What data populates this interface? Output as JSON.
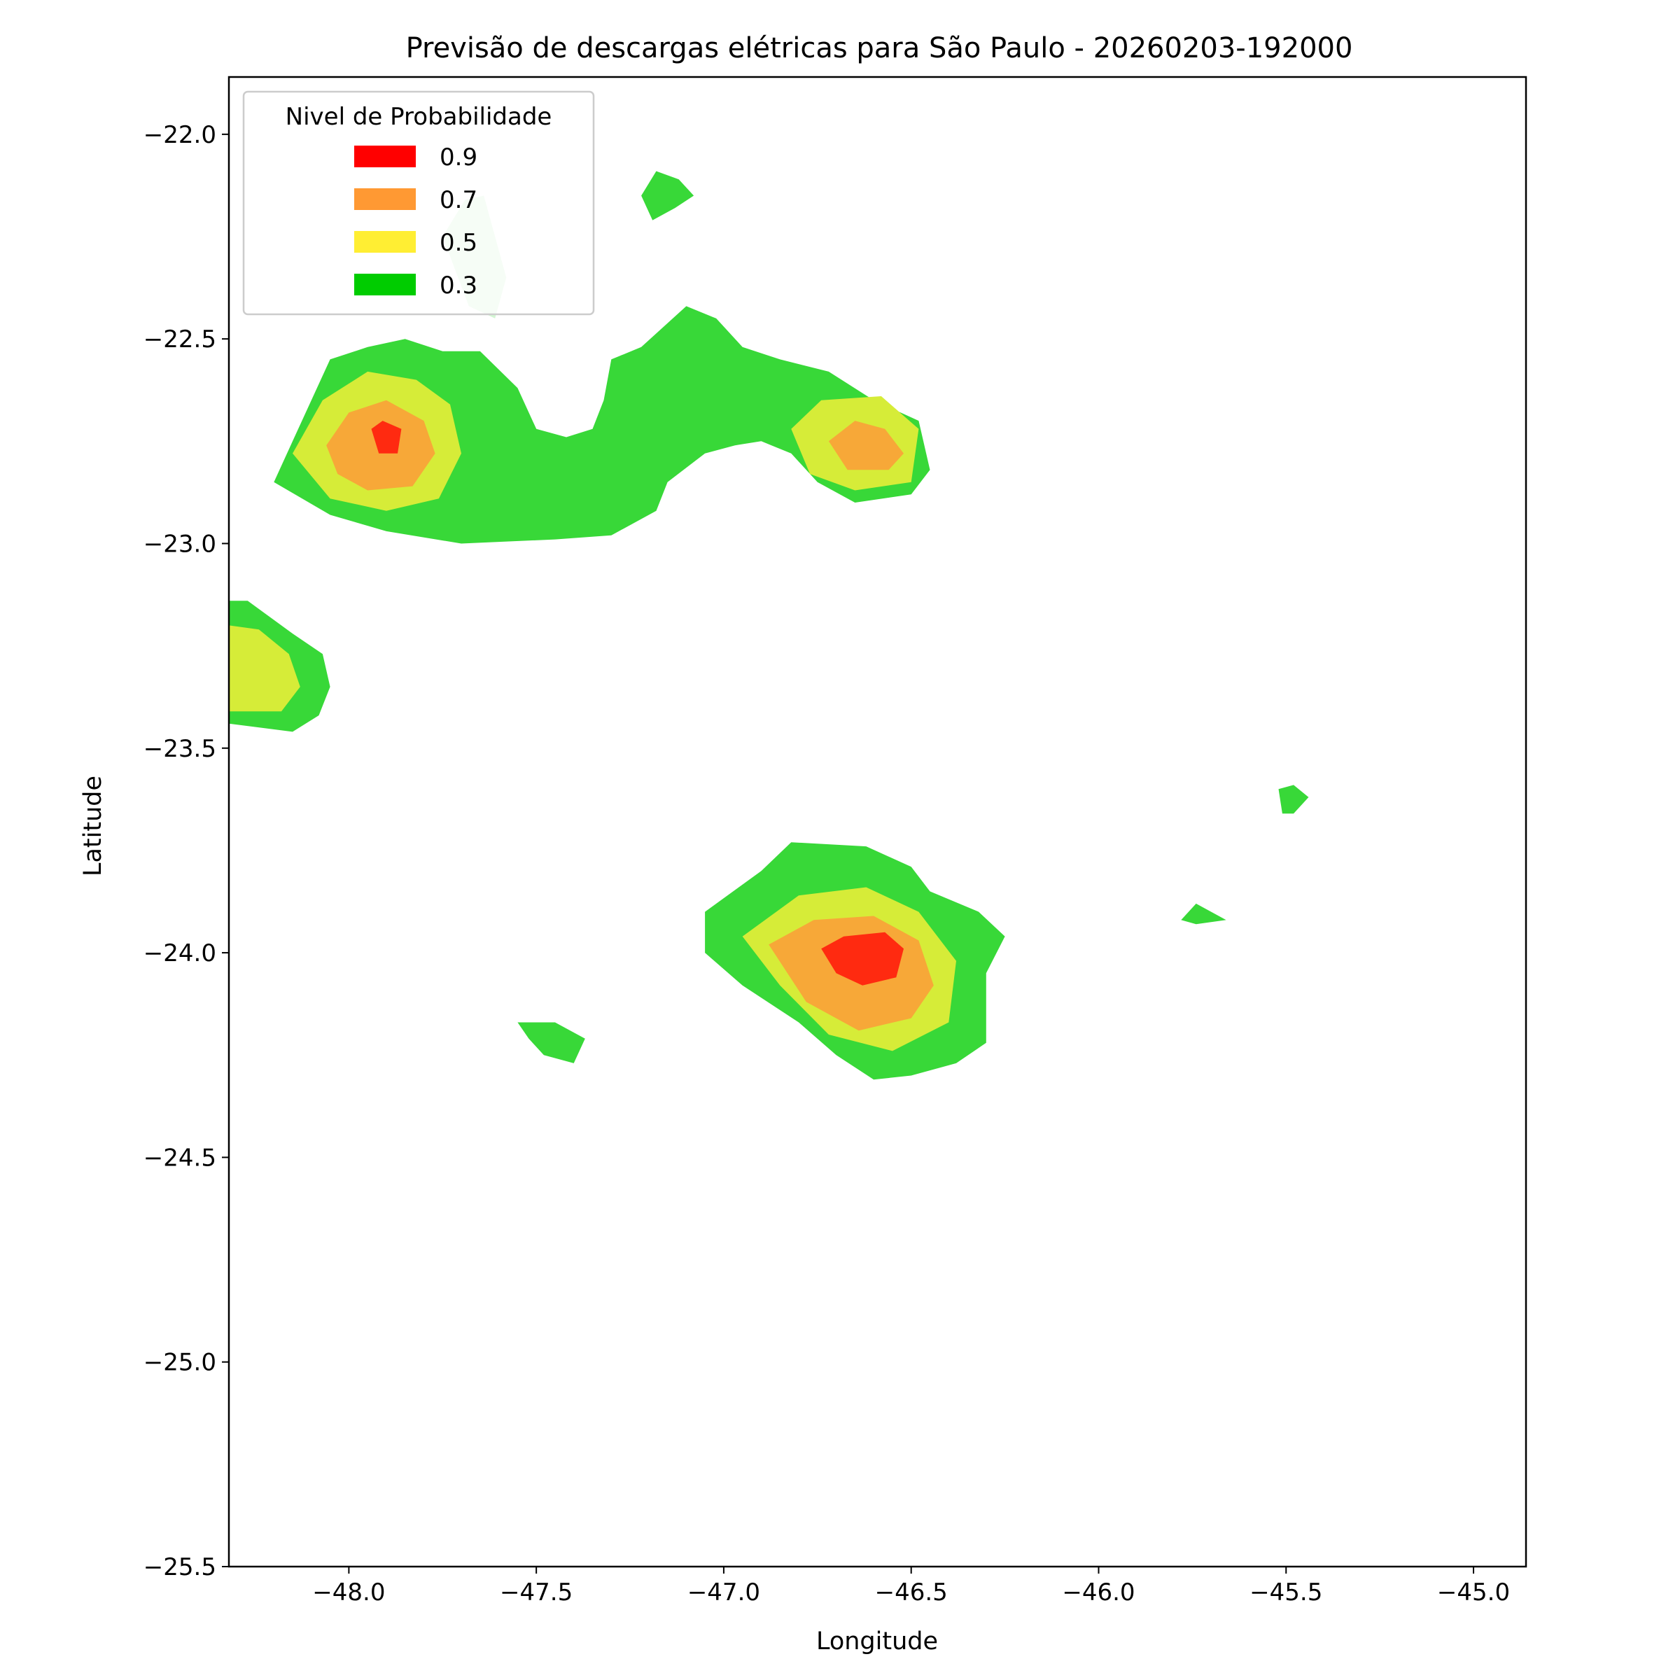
{
  "chart_data": {
    "type": "contourf",
    "title": "Previsão de descargas elétricas para São Paulo - 20260203-192000",
    "xlabel": "Longitude",
    "ylabel": "Latitude",
    "xlim": [
      -48.32,
      -44.86
    ],
    "ylim": [
      -25.5,
      -21.86
    ],
    "xticks": [
      -48.0,
      -47.5,
      -47.0,
      -46.5,
      -46.0,
      -45.5,
      -45.0
    ],
    "xtick_labels": [
      "−48.0",
      "−47.5",
      "−47.0",
      "−46.5",
      "−46.0",
      "−45.5",
      "−45.0"
    ],
    "yticks": [
      -22.0,
      -22.5,
      -23.0,
      -23.5,
      -24.0,
      -24.5,
      -25.0,
      -25.5
    ],
    "ytick_labels": [
      "−22.0",
      "−22.5",
      "−23.0",
      "−23.5",
      "−24.0",
      "−24.5",
      "−25.0",
      "−25.5"
    ],
    "grid": false,
    "legend": {
      "title": "Nivel de Probabilidade",
      "placement": "upper-left",
      "entries": [
        {
          "label": "0.9",
          "color": "#ff0000"
        },
        {
          "label": "0.7",
          "color": "#ff9933"
        },
        {
          "label": "0.5",
          "color": "#ffee33"
        },
        {
          "label": "0.3",
          "color": "#00cc00"
        }
      ]
    },
    "level_fill_colors": {
      "0.3": "#38d838",
      "0.5": "#d6ec38",
      "0.7": "#f7a838",
      "0.9": "#ff2a10"
    },
    "regions": [
      {
        "name": "northwest-cell",
        "level": 0.3,
        "points": [
          [
            -48.2,
            -22.85
          ],
          [
            -48.15,
            -22.75
          ],
          [
            -48.05,
            -22.55
          ],
          [
            -47.95,
            -22.52
          ],
          [
            -47.85,
            -22.5
          ],
          [
            -47.75,
            -22.53
          ],
          [
            -47.65,
            -22.53
          ],
          [
            -47.55,
            -22.62
          ],
          [
            -47.5,
            -22.72
          ],
          [
            -47.42,
            -22.74
          ],
          [
            -47.35,
            -22.72
          ],
          [
            -47.32,
            -22.65
          ],
          [
            -47.3,
            -22.55
          ],
          [
            -47.22,
            -22.52
          ],
          [
            -47.1,
            -22.42
          ],
          [
            -47.02,
            -22.45
          ],
          [
            -46.95,
            -22.52
          ],
          [
            -46.85,
            -22.55
          ],
          [
            -46.72,
            -22.58
          ],
          [
            -46.6,
            -22.65
          ],
          [
            -46.48,
            -22.7
          ],
          [
            -46.45,
            -22.82
          ],
          [
            -46.5,
            -22.88
          ],
          [
            -46.65,
            -22.9
          ],
          [
            -46.75,
            -22.85
          ],
          [
            -46.82,
            -22.78
          ],
          [
            -46.9,
            -22.75
          ],
          [
            -46.97,
            -22.76
          ],
          [
            -47.05,
            -22.78
          ],
          [
            -47.15,
            -22.85
          ],
          [
            -47.18,
            -22.92
          ],
          [
            -47.3,
            -22.98
          ],
          [
            -47.45,
            -22.99
          ],
          [
            -47.7,
            -23.0
          ],
          [
            -47.9,
            -22.97
          ],
          [
            -48.05,
            -22.93
          ]
        ]
      },
      {
        "name": "northwest-core-mid",
        "level": 0.5,
        "points": [
          [
            -48.15,
            -22.78
          ],
          [
            -48.07,
            -22.65
          ],
          [
            -47.95,
            -22.58
          ],
          [
            -47.82,
            -22.6
          ],
          [
            -47.73,
            -22.66
          ],
          [
            -47.7,
            -22.78
          ],
          [
            -47.76,
            -22.89
          ],
          [
            -47.9,
            -22.92
          ],
          [
            -48.05,
            -22.89
          ]
        ]
      },
      {
        "name": "northwest-core-high",
        "level": 0.7,
        "points": [
          [
            -48.06,
            -22.76
          ],
          [
            -48.0,
            -22.68
          ],
          [
            -47.9,
            -22.65
          ],
          [
            -47.8,
            -22.7
          ],
          [
            -47.77,
            -22.78
          ],
          [
            -47.83,
            -22.86
          ],
          [
            -47.95,
            -22.87
          ],
          [
            -48.03,
            -22.83
          ]
        ]
      },
      {
        "name": "northwest-core-peak",
        "level": 0.9,
        "points": [
          [
            -47.94,
            -22.72
          ],
          [
            -47.91,
            -22.7
          ],
          [
            -47.86,
            -22.72
          ],
          [
            -47.87,
            -22.78
          ],
          [
            -47.92,
            -22.78
          ]
        ]
      },
      {
        "name": "northeast-core-mid",
        "level": 0.5,
        "points": [
          [
            -46.82,
            -22.72
          ],
          [
            -46.74,
            -22.65
          ],
          [
            -46.58,
            -22.64
          ],
          [
            -46.48,
            -22.72
          ],
          [
            -46.5,
            -22.85
          ],
          [
            -46.65,
            -22.87
          ],
          [
            -46.77,
            -22.83
          ]
        ]
      },
      {
        "name": "northeast-core-high",
        "level": 0.7,
        "points": [
          [
            -46.72,
            -22.75
          ],
          [
            -46.65,
            -22.7
          ],
          [
            -46.57,
            -22.72
          ],
          [
            -46.52,
            -22.78
          ],
          [
            -46.56,
            -22.82
          ],
          [
            -46.67,
            -22.82
          ]
        ]
      },
      {
        "name": "north-patch",
        "level": 0.3,
        "points": [
          [
            -47.22,
            -22.15
          ],
          [
            -47.18,
            -22.09
          ],
          [
            -47.12,
            -22.11
          ],
          [
            -47.08,
            -22.15
          ],
          [
            -47.13,
            -22.18
          ],
          [
            -47.19,
            -22.21
          ]
        ]
      },
      {
        "name": "faint-patch",
        "level": 0.3,
        "points": [
          [
            -47.69,
            -22.16
          ],
          [
            -47.64,
            -22.15
          ],
          [
            -47.58,
            -22.35
          ],
          [
            -47.61,
            -22.45
          ],
          [
            -47.68,
            -22.42
          ],
          [
            -47.75,
            -22.25
          ]
        ]
      },
      {
        "name": "west-cell",
        "level": 0.3,
        "points": [
          [
            -48.32,
            -23.14
          ],
          [
            -48.27,
            -23.14
          ],
          [
            -48.15,
            -23.22
          ],
          [
            -48.07,
            -23.27
          ],
          [
            -48.05,
            -23.35
          ],
          [
            -48.08,
            -23.42
          ],
          [
            -48.15,
            -23.46
          ],
          [
            -48.32,
            -23.44
          ]
        ]
      },
      {
        "name": "west-core",
        "level": 0.5,
        "points": [
          [
            -48.32,
            -23.2
          ],
          [
            -48.24,
            -23.21
          ],
          [
            -48.16,
            -23.27
          ],
          [
            -48.13,
            -23.35
          ],
          [
            -48.18,
            -23.41
          ],
          [
            -48.32,
            -23.41
          ]
        ]
      },
      {
        "name": "south-cell",
        "level": 0.3,
        "points": [
          [
            -47.05,
            -23.9
          ],
          [
            -46.9,
            -23.8
          ],
          [
            -46.82,
            -23.73
          ],
          [
            -46.62,
            -23.74
          ],
          [
            -46.5,
            -23.79
          ],
          [
            -46.45,
            -23.85
          ],
          [
            -46.32,
            -23.9
          ],
          [
            -46.25,
            -23.96
          ],
          [
            -46.3,
            -24.05
          ],
          [
            -46.3,
            -24.22
          ],
          [
            -46.38,
            -24.27
          ],
          [
            -46.5,
            -24.3
          ],
          [
            -46.6,
            -24.31
          ],
          [
            -46.7,
            -24.25
          ],
          [
            -46.8,
            -24.17
          ],
          [
            -46.95,
            -24.08
          ],
          [
            -47.05,
            -24.0
          ]
        ]
      },
      {
        "name": "south-core-mid",
        "level": 0.5,
        "points": [
          [
            -46.95,
            -23.96
          ],
          [
            -46.8,
            -23.86
          ],
          [
            -46.62,
            -23.84
          ],
          [
            -46.48,
            -23.9
          ],
          [
            -46.38,
            -24.02
          ],
          [
            -46.4,
            -24.17
          ],
          [
            -46.55,
            -24.24
          ],
          [
            -46.72,
            -24.2
          ],
          [
            -46.85,
            -24.08
          ]
        ]
      },
      {
        "name": "south-core-high",
        "level": 0.7,
        "points": [
          [
            -46.88,
            -23.98
          ],
          [
            -46.76,
            -23.92
          ],
          [
            -46.6,
            -23.91
          ],
          [
            -46.48,
            -23.97
          ],
          [
            -46.44,
            -24.08
          ],
          [
            -46.5,
            -24.16
          ],
          [
            -46.64,
            -24.19
          ],
          [
            -46.78,
            -24.12
          ]
        ]
      },
      {
        "name": "south-core-peak",
        "level": 0.9,
        "points": [
          [
            -46.74,
            -23.99
          ],
          [
            -46.68,
            -23.96
          ],
          [
            -46.57,
            -23.95
          ],
          [
            -46.52,
            -23.99
          ],
          [
            -46.54,
            -24.06
          ],
          [
            -46.63,
            -24.08
          ],
          [
            -46.7,
            -24.05
          ]
        ]
      },
      {
        "name": "south-small-patch",
        "level": 0.3,
        "points": [
          [
            -47.55,
            -24.17
          ],
          [
            -47.45,
            -24.17
          ],
          [
            -47.37,
            -24.21
          ],
          [
            -47.4,
            -24.27
          ],
          [
            -47.48,
            -24.25
          ],
          [
            -47.52,
            -24.21
          ]
        ]
      },
      {
        "name": "east-patch-a",
        "level": 0.3,
        "points": [
          [
            -45.78,
            -23.92
          ],
          [
            -45.74,
            -23.88
          ],
          [
            -45.66,
            -23.92
          ],
          [
            -45.74,
            -23.93
          ]
        ]
      },
      {
        "name": "east-patch-b",
        "level": 0.3,
        "points": [
          [
            -45.52,
            -23.6
          ],
          [
            -45.48,
            -23.59
          ],
          [
            -45.44,
            -23.62
          ],
          [
            -45.48,
            -23.66
          ],
          [
            -45.51,
            -23.66
          ]
        ]
      }
    ]
  }
}
